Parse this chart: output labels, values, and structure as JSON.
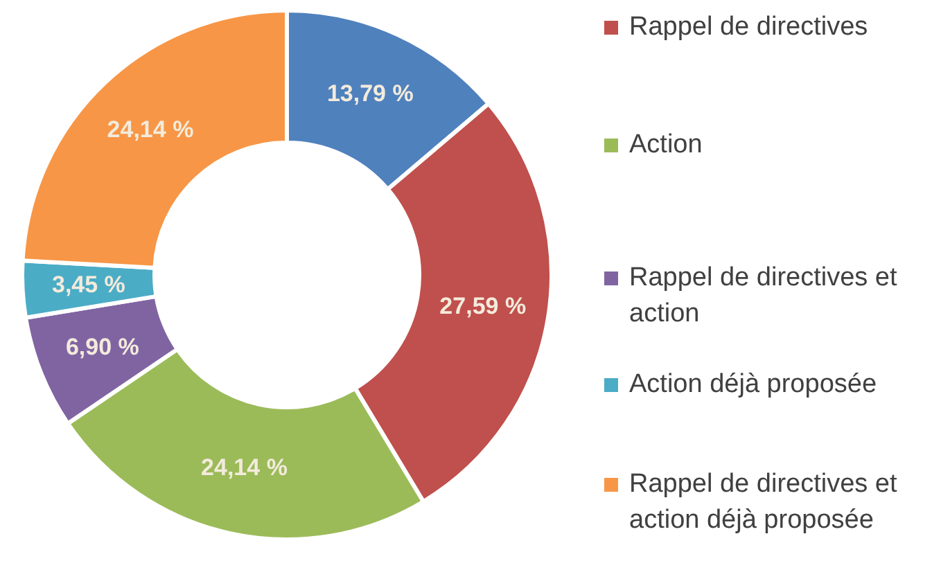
{
  "chart_data": {
    "type": "donut",
    "categories": [
      null,
      "Rappel de directives",
      "Action",
      "Rappel de directives et action",
      "Action déjà proposée",
      "Rappel de directives et action déjà proposée"
    ],
    "values": [
      13.79,
      27.59,
      24.14,
      6.9,
      3.45,
      24.14
    ],
    "value_labels": [
      "13,79 %",
      "27,59 %",
      "24,14 %",
      "6,90 %",
      "3,45 %",
      "24,14 %"
    ],
    "colors": [
      "#4f81bd",
      "#c0504d",
      "#9bbb59",
      "#8064a2",
      "#4bacc6",
      "#f79646"
    ],
    "legend": "right"
  }
}
